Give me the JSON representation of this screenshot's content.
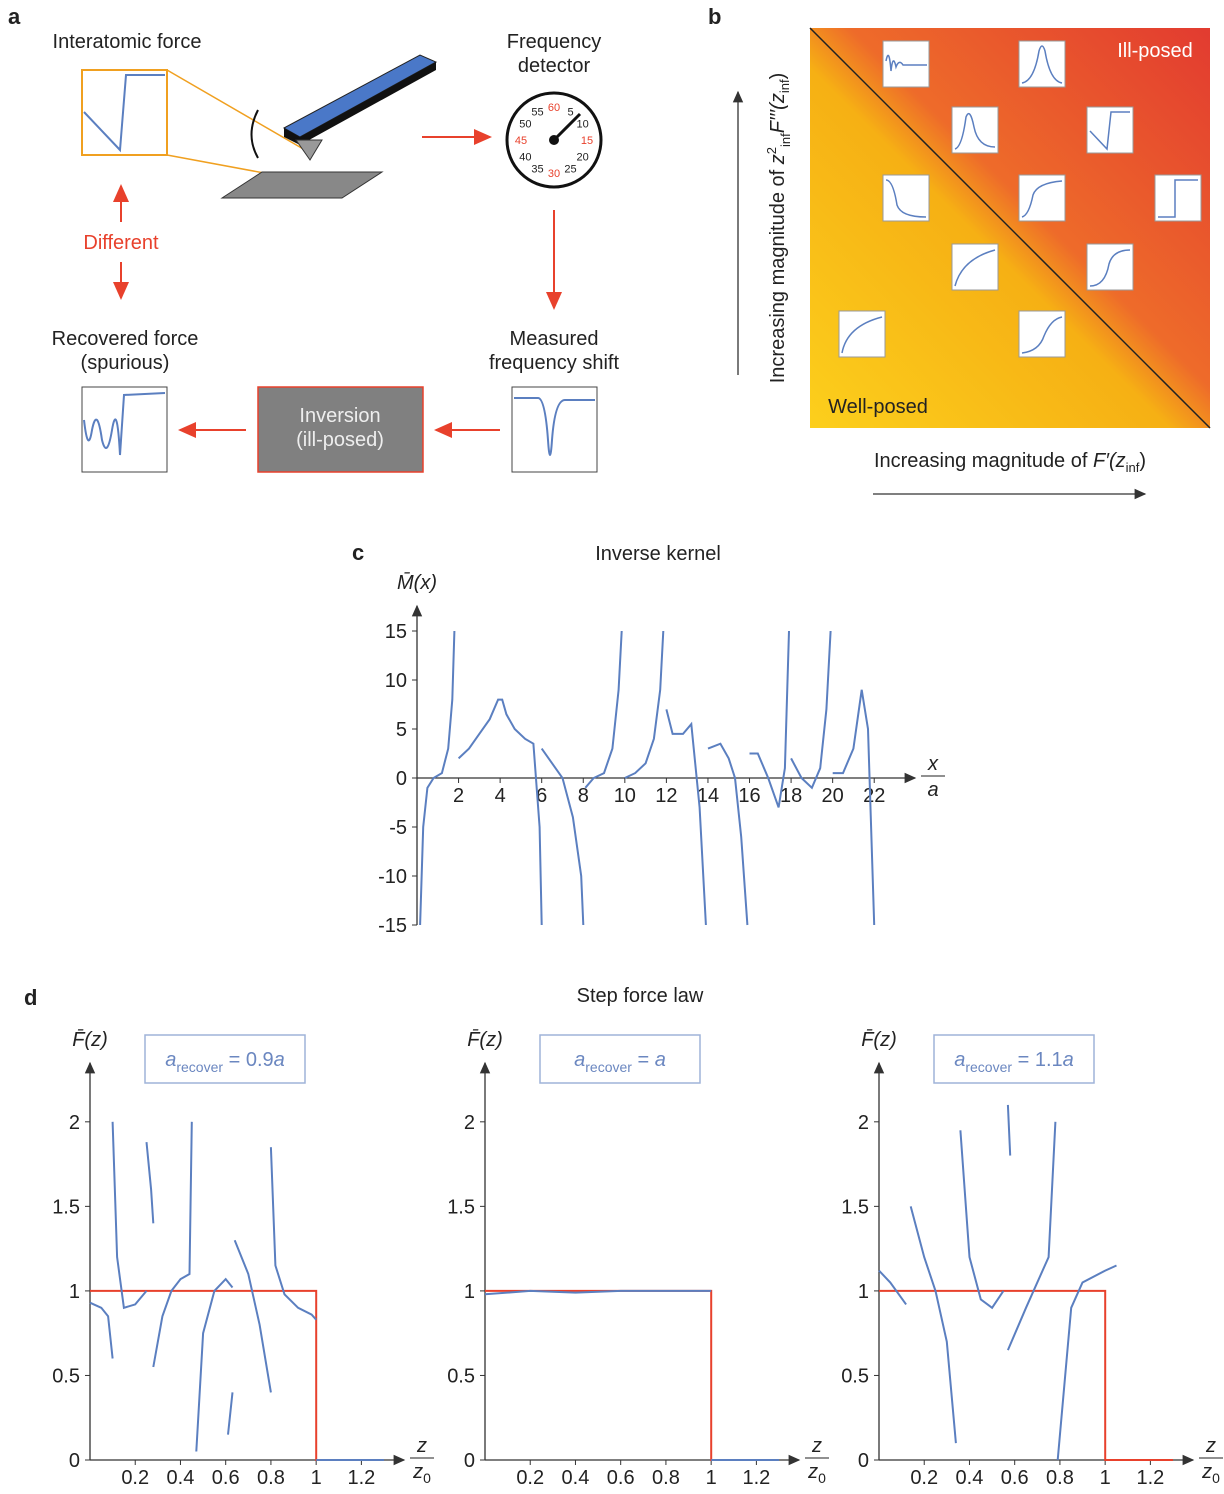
{
  "panel_labels": {
    "a": "a",
    "b": "b",
    "c": "c",
    "d": "d"
  },
  "panel_a": {
    "interatomic_force": "Interatomic force",
    "frequency_detector": [
      "Frequency",
      "detector"
    ],
    "dial_numbers": [
      "60",
      "5",
      "10",
      "15",
      "20",
      "25",
      "30",
      "35",
      "40",
      "45",
      "50",
      "55"
    ],
    "different": "Different",
    "recovered_force": [
      "Recovered force",
      "(spurious)"
    ],
    "measured_shift": [
      "Measured",
      "frequency shift"
    ],
    "inversion": [
      "Inversion",
      "(ill-posed)"
    ]
  },
  "panel_b": {
    "ill_posed": "Ill-posed",
    "well_posed": "Well-posed",
    "y_axis": [
      "Increasing magnitude of ",
      "z",
      "2",
      "inf",
      "F′′′(",
      "z",
      "inf",
      ")"
    ],
    "x_axis": [
      "Increasing magnitude of ",
      "F′(",
      "z",
      "inf",
      ")"
    ]
  },
  "panel_d": {
    "title": "Step force law"
  },
  "chart_data": [
    {
      "type": "line",
      "title": "Inverse kernel",
      "ylabel": "M̄(x)",
      "xlabel": {
        "numerator": "x",
        "denominator": "a"
      },
      "xlim": [
        0,
        23
      ],
      "ylim": [
        -15,
        15
      ],
      "xticks": [
        2,
        4,
        6,
        8,
        10,
        12,
        14,
        16,
        18,
        20,
        22
      ],
      "yticks": [
        -15,
        -10,
        -5,
        0,
        5,
        10,
        15
      ],
      "series": [
        {
          "color": "#5b7fc0",
          "x": [
            0.15,
            0.3,
            0.5,
            0.8,
            1.2,
            1.5,
            1.7,
            1.8,
            null,
            2.0,
            2.5,
            3.0,
            3.5,
            3.9,
            4.1,
            4.3,
            4.7,
            5.2,
            5.6,
            5.9,
            6.0,
            null,
            6.0,
            6.5,
            7.0,
            7.5,
            7.9,
            8.0,
            null,
            8.1,
            8.5,
            9.0,
            9.4,
            9.7,
            9.85,
            null,
            10.0,
            10.5,
            11.0,
            11.4,
            11.7,
            11.85,
            null,
            12.0,
            12.3,
            12.8,
            13.2,
            13.6,
            13.9,
            null,
            14.0,
            14.6,
            15.0,
            15.3,
            15.6,
            15.9,
            null,
            16.0,
            16.4,
            16.9,
            17.4,
            17.7,
            17.9,
            null,
            18.0,
            18.5,
            19.0,
            19.4,
            19.7,
            19.9,
            null,
            20.0,
            20.5,
            21.0,
            21.4,
            21.7,
            22.0
          ],
          "values": [
            -15,
            -5,
            -1,
            0,
            0.5,
            3,
            8,
            15,
            null,
            2,
            3,
            4.5,
            6,
            8,
            8,
            6.5,
            5,
            4,
            3.5,
            -5,
            -15,
            null,
            3,
            1.5,
            0,
            -4,
            -10,
            -15,
            null,
            -1,
            0,
            0.5,
            3,
            9,
            15,
            null,
            0,
            0.5,
            1.5,
            4,
            9,
            15,
            null,
            7,
            4.5,
            4.5,
            5.5,
            -3,
            -15,
            null,
            3,
            3.5,
            2,
            0,
            -6,
            -15,
            null,
            2.5,
            2.5,
            0,
            -3,
            1,
            15,
            null,
            2,
            0,
            -1,
            1,
            7,
            15,
            null,
            0.5,
            0.5,
            3,
            9,
            5,
            -15
          ]
        }
      ]
    },
    {
      "type": "line",
      "ylabel": "F̄(z)",
      "xlabel": {
        "numerator": "z",
        "denominator": "z",
        "denominator_subscript": "0"
      },
      "annotation": {
        "base": "a",
        "subscript": "recover",
        "equals": " = 0.9",
        "suffix": "a"
      },
      "xlim": [
        0,
        1.3
      ],
      "ylim": [
        0,
        2.2
      ],
      "xticks": [
        0.2,
        0.4,
        0.6,
        0.8,
        1,
        1.2
      ],
      "yticks": [
        0,
        0.5,
        1,
        1.5,
        2
      ],
      "series": [
        {
          "color": "#e8412c",
          "x": [
            0,
            1,
            1,
            1.3
          ],
          "values": [
            1,
            1,
            0,
            0
          ]
        },
        {
          "color": "#5b7fc0",
          "x": [
            0,
            0.05,
            0.08,
            0.1,
            null,
            0.1,
            0.12,
            0.15,
            0.2,
            0.25,
            null,
            0.25,
            0.27,
            0.28,
            null,
            0.28,
            0.32,
            0.36,
            0.4,
            0.44,
            0.45,
            null,
            0.47,
            0.5,
            0.55,
            0.6,
            0.63,
            null,
            0.61,
            0.63,
            null,
            0.64,
            0.7,
            0.75,
            0.8,
            null,
            0.8,
            0.82,
            0.86,
            0.92,
            0.98,
            1.0,
            null,
            1.0,
            1.3
          ],
          "values": [
            0.93,
            0.9,
            0.85,
            0.6,
            null,
            2.0,
            1.2,
            0.9,
            0.92,
            1.0,
            null,
            1.88,
            1.6,
            1.4,
            null,
            0.55,
            0.85,
            1.0,
            1.07,
            1.1,
            2.0,
            null,
            0.05,
            0.75,
            1.0,
            1.07,
            1.02,
            null,
            0.15,
            0.4,
            null,
            1.3,
            1.1,
            0.8,
            0.4,
            null,
            1.85,
            1.15,
            0.98,
            0.9,
            0.86,
            0.83,
            null,
            0,
            0
          ]
        }
      ]
    },
    {
      "type": "line",
      "ylabel": "F̄(z)",
      "xlabel": {
        "numerator": "z",
        "denominator": "z",
        "denominator_subscript": "0"
      },
      "annotation": {
        "base": "a",
        "subscript": "recover",
        "equals": " = ",
        "suffix": "a"
      },
      "xlim": [
        0,
        1.3
      ],
      "ylim": [
        0,
        2.2
      ],
      "xticks": [
        0.2,
        0.4,
        0.6,
        0.8,
        1,
        1.2
      ],
      "yticks": [
        0,
        0.5,
        1,
        1.5,
        2
      ],
      "series": [
        {
          "color": "#e8412c",
          "x": [
            0,
            1,
            1,
            1.3
          ],
          "values": [
            1,
            1,
            0,
            0
          ]
        },
        {
          "color": "#5b7fc0",
          "x": [
            0,
            0.2,
            0.4,
            0.6,
            0.8,
            1.0,
            null,
            1.0,
            1.3
          ],
          "values": [
            0.98,
            1.0,
            0.99,
            1.0,
            1.0,
            1.0,
            null,
            0,
            0
          ]
        }
      ]
    },
    {
      "type": "line",
      "ylabel": "F̄(z)",
      "xlabel": {
        "numerator": "z",
        "denominator": "z",
        "denominator_subscript": "0"
      },
      "annotation": {
        "base": "a",
        "subscript": "recover",
        "equals": " = 1.1",
        "suffix": "a"
      },
      "xlim": [
        0,
        1.3
      ],
      "ylim": [
        0,
        2.2
      ],
      "xticks": [
        0.2,
        0.4,
        0.6,
        0.8,
        1,
        1.2
      ],
      "yticks": [
        0,
        0.5,
        1,
        1.5,
        2
      ],
      "series": [
        {
          "color": "#e8412c",
          "x": [
            0,
            1,
            1,
            1.3
          ],
          "values": [
            1,
            1,
            0,
            0
          ]
        },
        {
          "color": "#5b7fc0",
          "x": [
            0,
            0.05,
            0.12,
            null,
            0.14,
            0.2,
            0.25,
            0.3,
            0.34,
            null,
            0.36,
            0.4,
            0.45,
            0.5,
            0.55,
            null,
            0.57,
            0.58,
            null,
            0.57,
            0.65,
            0.75,
            0.78,
            null,
            0.79,
            0.85,
            0.9,
            1.0,
            1.05
          ],
          "values": [
            1.12,
            1.05,
            0.92,
            null,
            1.5,
            1.2,
            1.0,
            0.7,
            0.1,
            null,
            1.95,
            1.2,
            0.95,
            0.9,
            1.0,
            null,
            2.1,
            1.8,
            null,
            0.65,
            0.9,
            1.2,
            2.0,
            null,
            0.0,
            0.9,
            1.05,
            1.12,
            1.15
          ]
        }
      ]
    }
  ]
}
